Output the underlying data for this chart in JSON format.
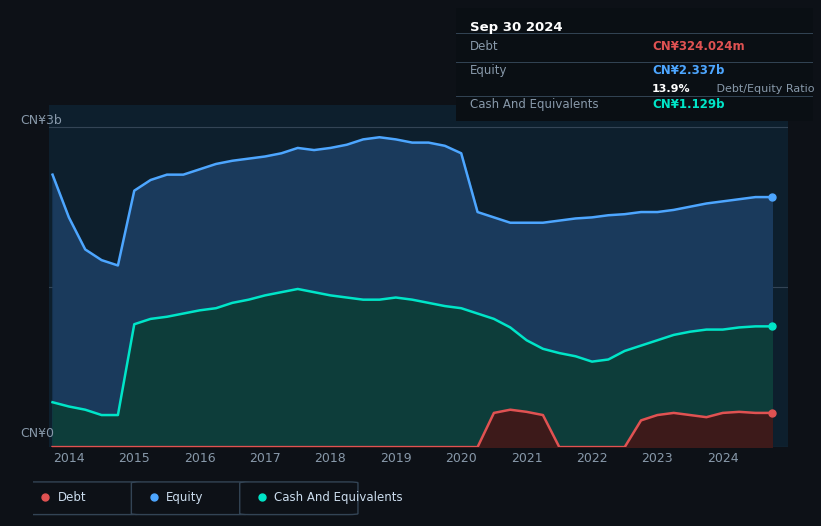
{
  "bg_color": "#0d1117",
  "plot_bg_color": "#0d1f2d",
  "title_box": {
    "date": "Sep 30 2024",
    "debt_label": "Debt",
    "debt_value": "CN¥324.024m",
    "debt_color": "#e05252",
    "equity_label": "Equity",
    "equity_value": "CN¥2.337b",
    "equity_color": "#4da6ff",
    "ratio_text": "13.9% Debt/Equity Ratio",
    "ratio_bold": "13.9%",
    "ratio_rest": " Debt/Equity Ratio",
    "cash_label": "Cash And Equivalents",
    "cash_value": "CN¥1.129b",
    "cash_color": "#00e5c8"
  },
  "ylabel_3b": "CN¥3b",
  "ylabel_0": "CN¥0",
  "ylim": [
    0,
    3.2
  ],
  "xlim_start": 2013.7,
  "xlim_end": 2025.0,
  "xtick_labels": [
    "2014",
    "2015",
    "2016",
    "2017",
    "2018",
    "2019",
    "2020",
    "2021",
    "2022",
    "2023",
    "2024"
  ],
  "xtick_positions": [
    2014,
    2015,
    2016,
    2017,
    2018,
    2019,
    2020,
    2021,
    2022,
    2023,
    2024
  ],
  "equity_color": "#4da6ff",
  "equity_fill": "#1a3a5c",
  "cash_color": "#00e5c8",
  "cash_fill": "#0d3d3a",
  "debt_color": "#e05252",
  "debt_fill": "#3d1a1a",
  "legend_items": [
    {
      "label": "Debt",
      "color": "#e05252"
    },
    {
      "label": "Equity",
      "color": "#4da6ff"
    },
    {
      "label": "Cash And Equivalents",
      "color": "#00e5c8"
    }
  ],
  "equity_x": [
    2013.75,
    2014.0,
    2014.25,
    2014.5,
    2014.75,
    2015.0,
    2015.25,
    2015.5,
    2015.75,
    2016.0,
    2016.25,
    2016.5,
    2016.75,
    2017.0,
    2017.25,
    2017.5,
    2017.75,
    2018.0,
    2018.25,
    2018.5,
    2018.75,
    2019.0,
    2019.25,
    2019.5,
    2019.75,
    2020.0,
    2020.25,
    2020.5,
    2020.75,
    2021.0,
    2021.25,
    2021.5,
    2021.75,
    2022.0,
    2022.25,
    2022.5,
    2022.75,
    2023.0,
    2023.25,
    2023.5,
    2023.75,
    2024.0,
    2024.25,
    2024.5,
    2024.75
  ],
  "equity_y": [
    2.55,
    2.15,
    1.85,
    1.75,
    1.7,
    2.4,
    2.5,
    2.55,
    2.55,
    2.6,
    2.65,
    2.68,
    2.7,
    2.72,
    2.75,
    2.8,
    2.78,
    2.8,
    2.83,
    2.88,
    2.9,
    2.88,
    2.85,
    2.85,
    2.82,
    2.75,
    2.2,
    2.15,
    2.1,
    2.1,
    2.1,
    2.12,
    2.14,
    2.15,
    2.17,
    2.18,
    2.2,
    2.2,
    2.22,
    2.25,
    2.28,
    2.3,
    2.32,
    2.34,
    2.34
  ],
  "cash_x": [
    2013.75,
    2014.0,
    2014.25,
    2014.5,
    2014.75,
    2015.0,
    2015.25,
    2015.5,
    2015.75,
    2016.0,
    2016.25,
    2016.5,
    2016.75,
    2017.0,
    2017.25,
    2017.5,
    2017.75,
    2018.0,
    2018.25,
    2018.5,
    2018.75,
    2019.0,
    2019.25,
    2019.5,
    2019.75,
    2020.0,
    2020.25,
    2020.5,
    2020.75,
    2021.0,
    2021.25,
    2021.5,
    2021.75,
    2022.0,
    2022.25,
    2022.5,
    2022.75,
    2023.0,
    2023.25,
    2023.5,
    2023.75,
    2024.0,
    2024.25,
    2024.5,
    2024.75
  ],
  "cash_y": [
    0.42,
    0.38,
    0.35,
    0.3,
    0.3,
    1.15,
    1.2,
    1.22,
    1.25,
    1.28,
    1.3,
    1.35,
    1.38,
    1.42,
    1.45,
    1.48,
    1.45,
    1.42,
    1.4,
    1.38,
    1.38,
    1.4,
    1.38,
    1.35,
    1.32,
    1.3,
    1.25,
    1.2,
    1.12,
    1.0,
    0.92,
    0.88,
    0.85,
    0.8,
    0.82,
    0.9,
    0.95,
    1.0,
    1.05,
    1.08,
    1.1,
    1.1,
    1.12,
    1.13,
    1.13
  ],
  "debt_x": [
    2013.75,
    2014.0,
    2014.25,
    2014.5,
    2014.75,
    2015.0,
    2015.25,
    2015.5,
    2015.75,
    2016.0,
    2016.25,
    2016.5,
    2016.75,
    2017.0,
    2017.25,
    2017.5,
    2017.75,
    2018.0,
    2018.25,
    2018.5,
    2018.75,
    2019.0,
    2019.25,
    2019.5,
    2019.75,
    2020.0,
    2020.25,
    2020.5,
    2020.75,
    2021.0,
    2021.25,
    2021.5,
    2021.75,
    2022.0,
    2022.25,
    2022.5,
    2022.75,
    2023.0,
    2023.25,
    2023.5,
    2023.75,
    2024.0,
    2024.25,
    2024.5,
    2024.75
  ],
  "debt_y": [
    0.0,
    0.0,
    0.0,
    0.0,
    0.0,
    0.0,
    0.0,
    0.0,
    0.0,
    0.0,
    0.0,
    0.0,
    0.0,
    0.0,
    0.0,
    0.0,
    0.0,
    0.0,
    0.0,
    0.0,
    0.0,
    0.0,
    0.0,
    0.0,
    0.0,
    0.0,
    0.0,
    0.32,
    0.35,
    0.33,
    0.3,
    0.0,
    0.0,
    0.0,
    0.0,
    0.0,
    0.25,
    0.3,
    0.32,
    0.3,
    0.28,
    0.32,
    0.33,
    0.32,
    0.32
  ]
}
